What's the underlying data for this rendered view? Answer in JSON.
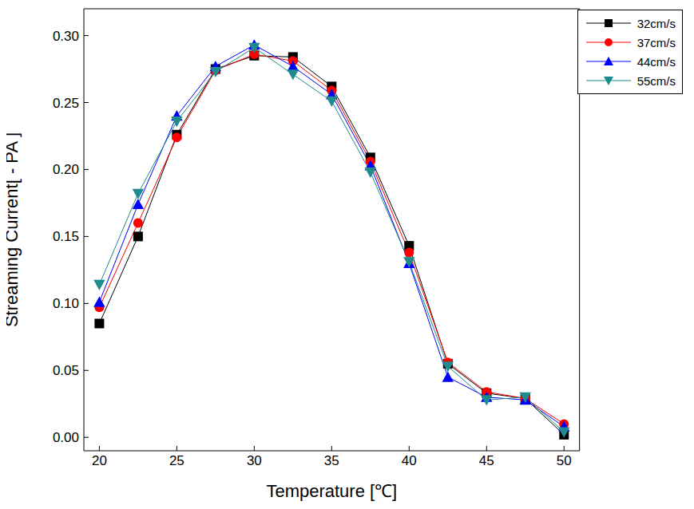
{
  "chart_data": {
    "type": "line",
    "x_label": "Temperature [℃]",
    "y_label": "Streaming Current[ - PA ]",
    "x": [
      20,
      22.5,
      25,
      27.5,
      30,
      32.5,
      35,
      37.5,
      40,
      42.5,
      45,
      47.5,
      50
    ],
    "xlim": [
      19,
      51
    ],
    "xticks": [
      20,
      25,
      30,
      35,
      40,
      45,
      50
    ],
    "ylim": [
      -0.01,
      0.32
    ],
    "yticks": [
      {
        "value": 0,
        "label": "0.00"
      },
      {
        "value": 0.05,
        "label": "0.05"
      },
      {
        "value": 0.1,
        "label": "0.10"
      },
      {
        "value": 0.15,
        "label": "0.15"
      },
      {
        "value": 0.2,
        "label": "0.20"
      },
      {
        "value": 0.25,
        "label": "0.25"
      },
      {
        "value": 0.3,
        "label": "0.30"
      }
    ],
    "grid": false,
    "legend": "top-right",
    "series": [
      {
        "name": "32cm/s",
        "color": "#000000",
        "marker": "square",
        "values": [
          0.085,
          0.15,
          0.226,
          0.275,
          0.285,
          0.284,
          0.262,
          0.209,
          0.143,
          0.055,
          0.033,
          0.029,
          0.002
        ]
      },
      {
        "name": "37cm/s",
        "color": "#ff0000",
        "marker": "circle",
        "values": [
          0.097,
          0.16,
          0.224,
          0.274,
          0.286,
          0.281,
          0.259,
          0.206,
          0.138,
          0.056,
          0.034,
          0.029,
          0.01
        ]
      },
      {
        "name": "44cm/s",
        "color": "#0000ff",
        "marker": "triangle",
        "values": [
          0.101,
          0.174,
          0.24,
          0.277,
          0.293,
          0.277,
          0.256,
          0.203,
          0.13,
          0.045,
          0.03,
          0.028,
          0.008
        ]
      },
      {
        "name": "55cm/s",
        "color": "#1e8c8c",
        "marker": "triangle-down",
        "values": [
          0.114,
          0.182,
          0.236,
          0.273,
          0.291,
          0.271,
          0.251,
          0.198,
          0.131,
          0.053,
          0.028,
          0.03,
          0.004
        ]
      }
    ]
  }
}
